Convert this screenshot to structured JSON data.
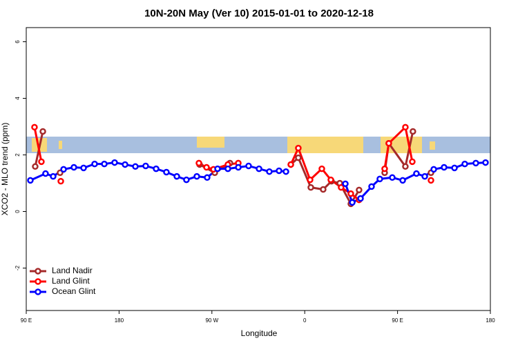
{
  "chart_data": {
    "type": "line",
    "title": "10N-20N May (Ver 10)   2015-01-01 to 2020-12-18",
    "x_label": "Longitude",
    "y_label": "XCO2 - MLO trend (ppm)",
    "xlim": [
      90,
      540
    ],
    "ylim": [
      -3.5,
      6.5
    ],
    "xticks": [
      {
        "value": 90,
        "label": "90 E"
      },
      {
        "value": 180,
        "label": "180"
      },
      {
        "value": 270,
        "label": "90 W"
      },
      {
        "value": 360,
        "label": "0"
      },
      {
        "value": 450,
        "label": "90 E"
      },
      {
        "value": 540,
        "label": "180"
      }
    ],
    "yticks": [
      -2,
      0,
      2,
      4,
      6
    ],
    "legend": "bottom-left",
    "series": [
      {
        "name": "Land Nadir",
        "color": "#a52a2a",
        "x": [
          98.7,
          106.1,
          null,
          122.8,
          null,
          258.1,
          272.8,
          287.5,
          null,
          346.5,
          353.8,
          365.9,
          377.9,
          385.9,
          394.0,
          404.7,
          412.7,
          null,
          437.5,
          441.5,
          457.6,
          464.9,
          null,
          482.4
        ],
        "values": [
          1.59,
          2.83,
          null,
          1.37,
          null,
          1.66,
          1.37,
          1.71,
          null,
          1.66,
          1.9,
          0.85,
          0.78,
          1.07,
          1.0,
          0.27,
          0.76,
          null,
          1.37,
          2.41,
          1.59,
          2.83,
          null,
          1.37
        ]
      },
      {
        "name": "Land Glint",
        "color": "#ff0000",
        "x": [
          98.0,
          104.7,
          null,
          123.5,
          null,
          257.4,
          264.8,
          271.5,
          285.5,
          295.6,
          null,
          346.5,
          353.8,
          365.2,
          376.6,
          385.3,
          395.3,
          404.7,
          412.7,
          null,
          437.5,
          441.5,
          457.6,
          464.3,
          null,
          482.4
        ],
        "values": [
          2.98,
          1.76,
          null,
          1.07,
          null,
          1.71,
          1.56,
          1.49,
          1.66,
          1.71,
          null,
          1.66,
          2.24,
          1.12,
          1.51,
          1.12,
          0.85,
          0.63,
          0.41,
          null,
          1.51,
          2.41,
          2.98,
          1.76,
          null,
          1.1
        ]
      },
      {
        "name": "Ocean Glint",
        "color": "#0000ff",
        "x": [
          94.0,
          108.7,
          116.1,
          126.2,
          136.2,
          145.6,
          156.3,
          165.7,
          175.7,
          185.8,
          195.8,
          205.8,
          215.9,
          225.9,
          236.0,
          245.3,
          255.4,
          265.4,
          275.5,
          285.5,
          295.6,
          305.6,
          315.7,
          325.7,
          335.1,
          341.8,
          null,
          399.4,
          406.1,
          414.1,
          424.8,
          432.8,
          444.9,
          455.0,
          468.3,
          476.4,
          485.1,
          495.1,
          505.2,
          515.2,
          525.9,
          535.3
        ],
        "values": [
          1.1,
          1.34,
          1.24,
          1.49,
          1.56,
          1.54,
          1.68,
          1.68,
          1.73,
          1.66,
          1.59,
          1.61,
          1.51,
          1.39,
          1.24,
          1.12,
          1.24,
          1.2,
          1.51,
          1.51,
          1.56,
          1.61,
          1.51,
          1.41,
          1.44,
          1.41,
          null,
          0.98,
          0.32,
          0.46,
          0.88,
          1.15,
          1.2,
          1.1,
          1.34,
          1.24,
          1.49,
          1.56,
          1.54,
          1.68,
          1.71,
          1.73
        ]
      }
    ]
  }
}
